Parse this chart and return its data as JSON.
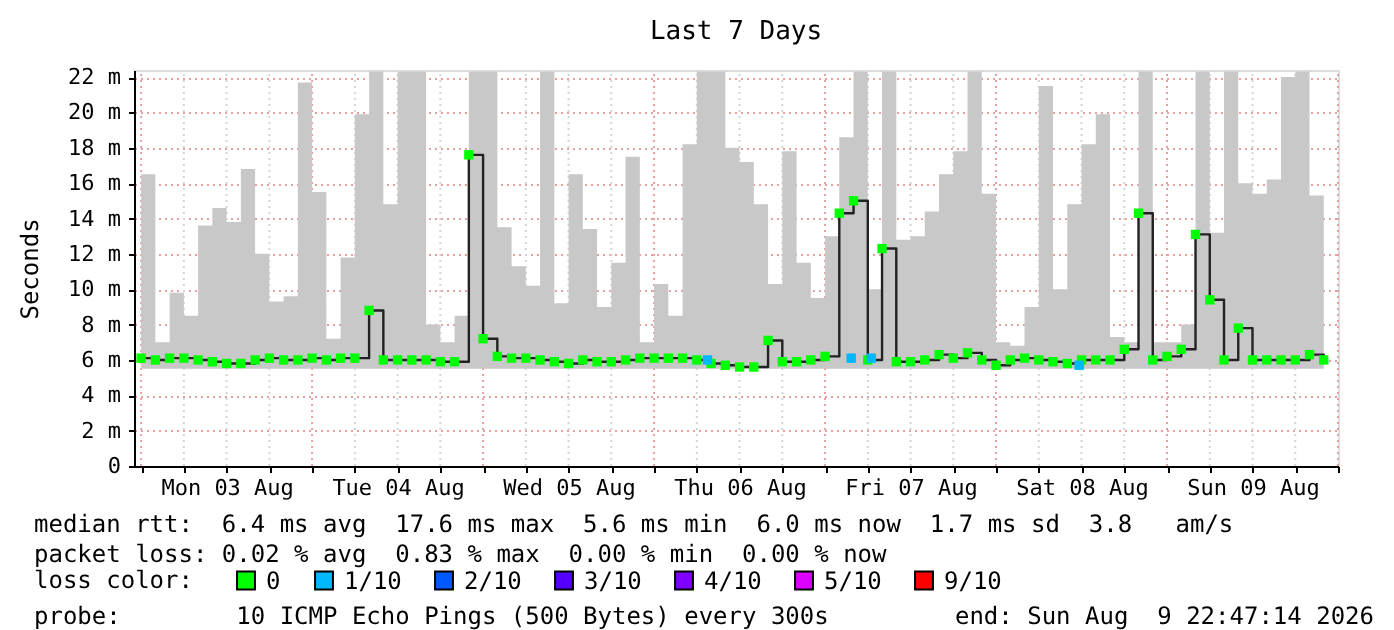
{
  "chart_data": {
    "type": "step",
    "title": "Last 7 Days",
    "ylabel": "Seconds",
    "x": [
      "2026-08-03T00:00",
      "2026-08-03T02:00",
      "2026-08-03T04:00",
      "2026-08-03T06:00",
      "2026-08-03T08:00",
      "2026-08-03T10:00",
      "2026-08-03T12:00",
      "2026-08-03T14:00",
      "2026-08-03T16:00",
      "2026-08-03T18:00",
      "2026-08-03T20:00",
      "2026-08-03T22:00",
      "2026-08-04T00:00",
      "2026-08-04T02:00",
      "2026-08-04T04:00",
      "2026-08-04T06:00",
      "2026-08-04T08:00",
      "2026-08-04T10:00",
      "2026-08-04T12:00",
      "2026-08-04T14:00",
      "2026-08-04T16:00",
      "2026-08-04T18:00",
      "2026-08-04T20:00",
      "2026-08-04T22:00",
      "2026-08-05T00:00",
      "2026-08-05T02:00",
      "2026-08-05T04:00",
      "2026-08-05T06:00",
      "2026-08-05T08:00",
      "2026-08-05T10:00",
      "2026-08-05T12:00",
      "2026-08-05T14:00",
      "2026-08-05T16:00",
      "2026-08-05T18:00",
      "2026-08-05T20:00",
      "2026-08-05T22:00",
      "2026-08-06T00:00",
      "2026-08-06T02:00",
      "2026-08-06T04:00",
      "2026-08-06T06:00",
      "2026-08-06T08:00",
      "2026-08-06T10:00",
      "2026-08-06T12:00",
      "2026-08-06T14:00",
      "2026-08-06T16:00",
      "2026-08-06T18:00",
      "2026-08-06T20:00",
      "2026-08-06T22:00",
      "2026-08-07T00:00",
      "2026-08-07T02:00",
      "2026-08-07T04:00",
      "2026-08-07T06:00",
      "2026-08-07T08:00",
      "2026-08-07T10:00",
      "2026-08-07T12:00",
      "2026-08-07T14:00",
      "2026-08-07T16:00",
      "2026-08-07T18:00",
      "2026-08-07T20:00",
      "2026-08-07T22:00",
      "2026-08-08T00:00",
      "2026-08-08T02:00",
      "2026-08-08T04:00",
      "2026-08-08T06:00",
      "2026-08-08T08:00",
      "2026-08-08T10:00",
      "2026-08-08T12:00",
      "2026-08-08T14:00",
      "2026-08-08T16:00",
      "2026-08-08T18:00",
      "2026-08-08T20:00",
      "2026-08-08T22:00",
      "2026-08-09T00:00",
      "2026-08-09T02:00",
      "2026-08-09T04:00",
      "2026-08-09T06:00",
      "2026-08-09T08:00",
      "2026-08-09T10:00",
      "2026-08-09T12:00",
      "2026-08-09T14:00",
      "2026-08-09T16:00",
      "2026-08-09T18:00",
      "2026-08-09T20:00",
      "2026-08-09T22:00"
    ],
    "series": [
      {
        "name": "0",
        "color": "#00ff00",
        "values": [
          6.1,
          6.0,
          6.1,
          6.1,
          6.0,
          5.9,
          5.8,
          5.8,
          6.0,
          6.1,
          6.0,
          6.0,
          6.1,
          6.0,
          6.1,
          6.1,
          8.8,
          6.0,
          6.0,
          6.0,
          6.0,
          5.9,
          5.9,
          17.6,
          7.2,
          6.2,
          6.1,
          6.1,
          6.0,
          5.9,
          5.8,
          6.0,
          5.9,
          5.9,
          6.0,
          6.1,
          6.1,
          6.1,
          6.1,
          6.0,
          5.8,
          5.7,
          5.6,
          5.6,
          7.1,
          5.9,
          5.9,
          6.0,
          6.2,
          14.3,
          15.0,
          6.0,
          12.3,
          5.9,
          5.9,
          6.0,
          6.3,
          6.1,
          6.4,
          6.0,
          5.7,
          6.0,
          6.1,
          6.0,
          5.9,
          5.8,
          6.0,
          6.0,
          6.0,
          6.6,
          14.3,
          6.0,
          6.2,
          6.6,
          13.1,
          9.4,
          6.0,
          7.8,
          6.0,
          6.0,
          6.0,
          6.0,
          6.3,
          6.0
        ],
        "lower": [
          5.5,
          5.5,
          5.5,
          5.5,
          5.5,
          5.5,
          5.5,
          5.5,
          5.5,
          5.5,
          5.5,
          5.5,
          5.5,
          5.5,
          5.5,
          5.5,
          5.5,
          5.5,
          5.5,
          5.5,
          5.5,
          5.5,
          5.5,
          5.5,
          5.5,
          5.5,
          5.5,
          5.5,
          5.5,
          5.5,
          5.5,
          5.5,
          5.5,
          5.5,
          5.5,
          5.5,
          5.5,
          5.5,
          5.5,
          5.5,
          5.5,
          5.5,
          5.5,
          5.5,
          5.5,
          5.5,
          5.5,
          5.5,
          5.5,
          5.5,
          5.5,
          5.5,
          5.5,
          5.5,
          5.5,
          5.5,
          5.5,
          5.5,
          5.5,
          5.5,
          5.5,
          5.5,
          5.5,
          5.5,
          5.5,
          5.5,
          5.5,
          5.5,
          5.5,
          5.5,
          5.5,
          5.5,
          5.5,
          5.5,
          5.5,
          5.5,
          5.5,
          5.5,
          5.5,
          5.5,
          5.5,
          5.5,
          5.5,
          5.5
        ],
        "upper": [
          16.5,
          7.0,
          9.8,
          8.5,
          13.6,
          14.6,
          13.8,
          16.8,
          12.0,
          9.3,
          9.6,
          21.7,
          15.5,
          7.2,
          11.8,
          19.9,
          22.3,
          14.8,
          22.3,
          22.3,
          8.0,
          7.0,
          8.5,
          22.3,
          22.3,
          13.5,
          11.3,
          10.2,
          22.3,
          9.2,
          16.5,
          13.4,
          9.0,
          11.5,
          17.5,
          7.0,
          10.3,
          8.5,
          18.2,
          22.3,
          22.3,
          18.0,
          17.2,
          14.8,
          10.3,
          17.8,
          11.5,
          9.5,
          13.0,
          18.6,
          22.3,
          10.0,
          22.3,
          12.8,
          13.0,
          14.4,
          16.5,
          17.8,
          22.3,
          15.4,
          7.0,
          6.8,
          9.0,
          21.5,
          10.0,
          14.8,
          18.2,
          19.9,
          7.3,
          7.0,
          22.3,
          7.0,
          7.0,
          8.0,
          22.3,
          13.2,
          22.3,
          16.0,
          15.4,
          16.2,
          22.0,
          22.3,
          15.3,
          13.6
        ]
      },
      {
        "name": "1/10",
        "type": "scatter",
        "color": "#00b8ff",
        "x": [
          "2026-08-06T07:30",
          "2026-08-07T03:40",
          "2026-08-07T06:30",
          "2026-08-08T11:40"
        ],
        "values": [
          6.0,
          6.1,
          6.1,
          5.7
        ]
      },
      {
        "name": "2/10",
        "type": "scatter",
        "color": "#0059ff",
        "values": [
          null,
          null,
          null,
          null,
          null,
          null,
          null,
          null,
          null,
          null,
          null,
          null,
          null,
          null,
          null,
          null,
          null,
          null,
          null,
          null,
          null,
          null,
          null,
          null,
          null,
          null,
          null,
          null,
          null,
          null,
          null,
          null,
          null,
          null,
          null,
          null,
          null,
          null,
          null,
          null,
          null,
          null,
          null,
          null,
          null,
          null,
          null,
          null,
          null,
          null,
          null,
          null,
          null,
          null,
          null,
          null,
          null,
          null,
          null,
          null,
          null,
          null,
          null,
          null,
          null,
          null,
          null,
          null,
          null,
          null,
          null,
          null,
          null,
          null,
          null,
          null,
          null,
          null,
          null,
          null,
          null,
          null,
          null,
          null
        ]
      },
      {
        "name": "3/10",
        "type": "scatter",
        "color": "#5500ff",
        "values": [
          null,
          null,
          null,
          null,
          null,
          null,
          null,
          null,
          null,
          null,
          null,
          null,
          null,
          null,
          null,
          null,
          null,
          null,
          null,
          null,
          null,
          null,
          null,
          null,
          null,
          null,
          null,
          null,
          null,
          null,
          null,
          null,
          null,
          null,
          null,
          null,
          null,
          null,
          null,
          null,
          null,
          null,
          null,
          null,
          null,
          null,
          null,
          null,
          null,
          null,
          null,
          null,
          null,
          null,
          null,
          null,
          null,
          null,
          null,
          null,
          null,
          null,
          null,
          null,
          null,
          null,
          null,
          null,
          null,
          null,
          null,
          null,
          null,
          null,
          null,
          null,
          null,
          null,
          null,
          null,
          null,
          null,
          null,
          null
        ]
      },
      {
        "name": "4/10",
        "type": "scatter",
        "color": "#7e00ff",
        "values": [
          null,
          null,
          null,
          null,
          null,
          null,
          null,
          null,
          null,
          null,
          null,
          null,
          null,
          null,
          null,
          null,
          null,
          null,
          null,
          null,
          null,
          null,
          null,
          null,
          null,
          null,
          null,
          null,
          null,
          null,
          null,
          null,
          null,
          null,
          null,
          null,
          null,
          null,
          null,
          null,
          null,
          null,
          null,
          null,
          null,
          null,
          null,
          null,
          null,
          null,
          null,
          null,
          null,
          null,
          null,
          null,
          null,
          null,
          null,
          null,
          null,
          null,
          null,
          null,
          null,
          null,
          null,
          null,
          null,
          null,
          null,
          null,
          null,
          null,
          null,
          null,
          null,
          null,
          null,
          null,
          null,
          null,
          null,
          null
        ]
      },
      {
        "name": "5/10",
        "type": "scatter",
        "color": "#dd00ff",
        "values": [
          null,
          null,
          null,
          null,
          null,
          null,
          null,
          null,
          null,
          null,
          null,
          null,
          null,
          null,
          null,
          null,
          null,
          null,
          null,
          null,
          null,
          null,
          null,
          null,
          null,
          null,
          null,
          null,
          null,
          null,
          null,
          null,
          null,
          null,
          null,
          null,
          null,
          null,
          null,
          null,
          null,
          null,
          null,
          null,
          null,
          null,
          null,
          null,
          null,
          null,
          null,
          null,
          null,
          null,
          null,
          null,
          null,
          null,
          null,
          null,
          null,
          null,
          null,
          null,
          null,
          null,
          null,
          null,
          null,
          null,
          null,
          null,
          null,
          null,
          null,
          null,
          null,
          null,
          null,
          null,
          null,
          null,
          null,
          null
        ]
      },
      {
        "name": "9/10",
        "type": "scatter",
        "color": "#ff0000",
        "values": [
          null,
          null,
          null,
          null,
          null,
          null,
          null,
          null,
          null,
          null,
          null,
          null,
          null,
          null,
          null,
          null,
          null,
          null,
          null,
          null,
          null,
          null,
          null,
          null,
          null,
          null,
          null,
          null,
          null,
          null,
          null,
          null,
          null,
          null,
          null,
          null,
          null,
          null,
          null,
          null,
          null,
          null,
          null,
          null,
          null,
          null,
          null,
          null,
          null,
          null,
          null,
          null,
          null,
          null,
          null,
          null,
          null,
          null,
          null,
          null,
          null,
          null,
          null,
          null,
          null,
          null,
          null,
          null,
          null,
          null,
          null,
          null,
          null,
          null,
          null,
          null,
          null,
          null,
          null,
          null,
          null,
          null,
          null,
          null
        ]
      }
    ],
    "legend_title": "loss color:",
    "legend": "bottom left",
    "marker": "square",
    "line_style": "solid",
    "grid": true,
    "xlim": [
      "2026-08-02T23:00",
      "2026-08-10T00:00"
    ],
    "xticks": [
      {
        "value": "2026-08-03T00:00",
        "label": null
      },
      {
        "value": "2026-08-03T06:00",
        "label": null
      },
      {
        "value": "2026-08-03T12:00",
        "label": "Mon 03 Aug"
      },
      {
        "value": "2026-08-03T18:00",
        "label": null
      },
      {
        "value": "2026-08-04T00:00",
        "label": null
      },
      {
        "value": "2026-08-04T06:00",
        "label": null
      },
      {
        "value": "2026-08-04T12:00",
        "label": "Tue 04 Aug"
      },
      {
        "value": "2026-08-04T18:00",
        "label": null
      },
      {
        "value": "2026-08-05T00:00",
        "label": null
      },
      {
        "value": "2026-08-05T06:00",
        "label": null
      },
      {
        "value": "2026-08-05T12:00",
        "label": "Wed 05 Aug"
      },
      {
        "value": "2026-08-05T18:00",
        "label": null
      },
      {
        "value": "2026-08-06T00:00",
        "label": null
      },
      {
        "value": "2026-08-06T06:00",
        "label": null
      },
      {
        "value": "2026-08-06T12:00",
        "label": "Thu 06 Aug"
      },
      {
        "value": "2026-08-06T18:00",
        "label": null
      },
      {
        "value": "2026-08-07T00:00",
        "label": null
      },
      {
        "value": "2026-08-07T06:00",
        "label": null
      },
      {
        "value": "2026-08-07T12:00",
        "label": "Fri 07 Aug"
      },
      {
        "value": "2026-08-07T18:00",
        "label": null
      },
      {
        "value": "2026-08-08T00:00",
        "label": null
      },
      {
        "value": "2026-08-08T06:00",
        "label": null
      },
      {
        "value": "2026-08-08T12:00",
        "label": "Sat 08 Aug"
      },
      {
        "value": "2026-08-08T18:00",
        "label": null
      },
      {
        "value": "2026-08-09T00:00",
        "label": null
      },
      {
        "value": "2026-08-09T06:00",
        "label": null
      },
      {
        "value": "2026-08-09T12:00",
        "label": "Sun 09 Aug"
      },
      {
        "value": "2026-08-09T18:00",
        "label": null
      },
      {
        "value": "2026-08-10T00:00",
        "label": null
      }
    ],
    "ylim": [
      0,
      22.4
    ],
    "yticks": [
      0,
      {
        "value": 2,
        "label": "2 m"
      },
      {
        "value": 4,
        "label": "4 m"
      },
      {
        "value": 6,
        "label": "6 m"
      },
      {
        "value": 8,
        "label": "8 m"
      },
      {
        "value": 10,
        "label": "10 m"
      },
      {
        "value": 12,
        "label": "12 m"
      },
      {
        "value": 14,
        "label": "14 m"
      },
      {
        "value": 16,
        "label": "16 m"
      },
      {
        "value": 18,
        "label": "18 m"
      },
      {
        "value": 20,
        "label": "20 m"
      },
      {
        "value": 22,
        "label": "22 m"
      }
    ],
    "annotations": [
      "median rtt:  6.4 ms avg  17.6 ms max  5.6 ms min  6.0 ms now  1.7 ms sd  3.8   am/s",
      "packet loss: 0.02 % avg  0.83 % max  0.00 % min  0.00 % now",
      "probe:        10 ICMP Echo Pings (500 Bytes) every 300s",
      "end: Sun Aug  9 22:47:14 2026"
    ]
  }
}
